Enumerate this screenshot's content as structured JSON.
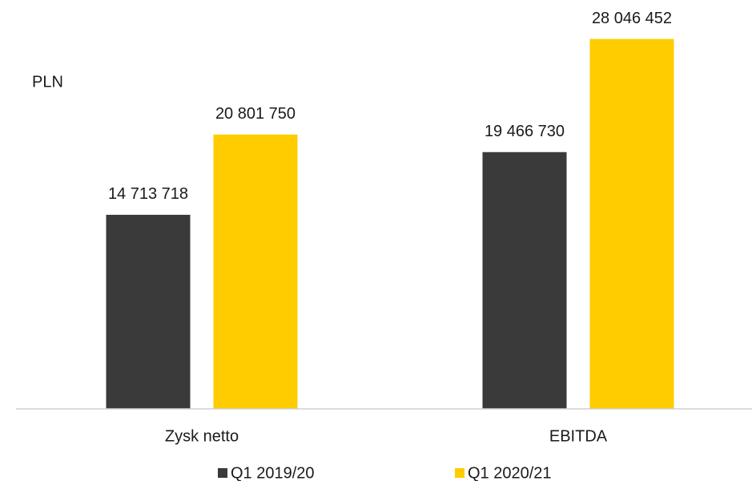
{
  "chart_data": {
    "type": "bar",
    "y_label": "PLN",
    "categories": [
      "Zysk netto",
      "EBITDA"
    ],
    "series": [
      {
        "name": "Q1 2019/20",
        "color": "#3a3a3a",
        "values": [
          14713718,
          19466730
        ],
        "value_labels": [
          "14 713 718",
          "19 466 730"
        ]
      },
      {
        "name": "Q1 2020/21",
        "color": "#ffcc00",
        "values": [
          20801750,
          28046452
        ],
        "value_labels": [
          "20 801 750",
          "28 046 452"
        ]
      }
    ],
    "ylim": [
      0,
      31000000
    ],
    "legend": "bottom"
  }
}
